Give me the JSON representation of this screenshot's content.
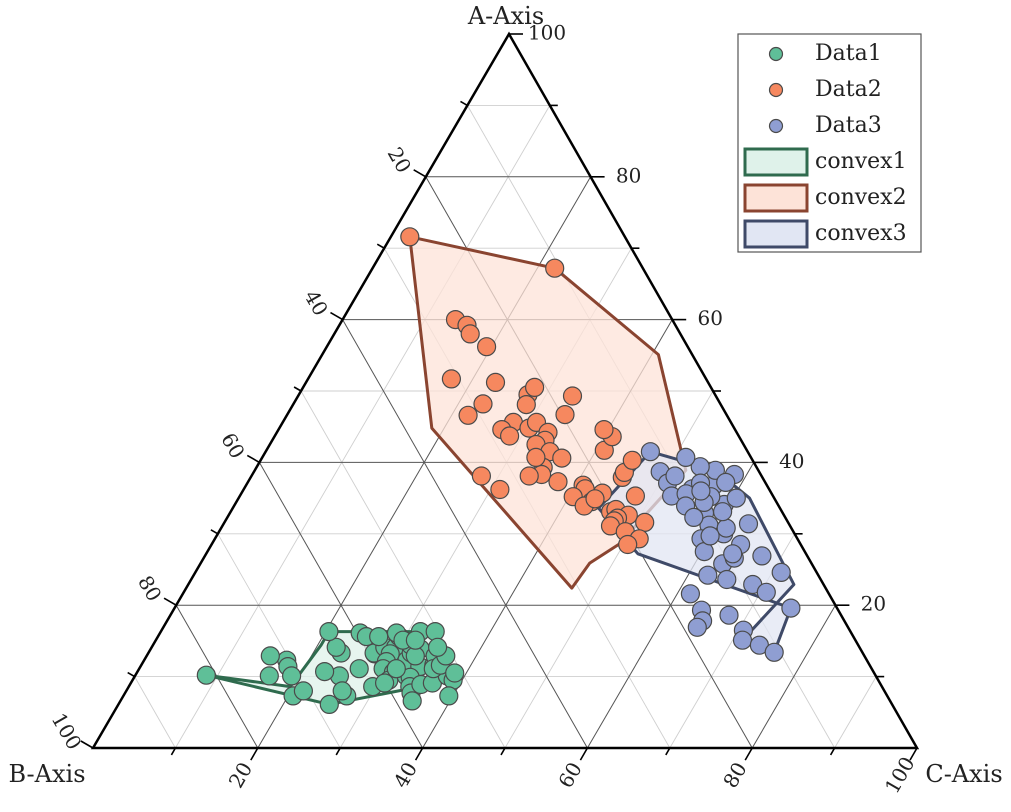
{
  "chart_data": {
    "type": "scatter",
    "subtype": "ternary",
    "axes": {
      "a": {
        "label": "A-Axis",
        "range": [
          0,
          100
        ]
      },
      "b": {
        "label": "B-Axis",
        "range": [
          0,
          100
        ]
      },
      "c": {
        "label": "C-Axis",
        "range": [
          0,
          100
        ]
      }
    },
    "ticks": {
      "a": [
        "20",
        "40",
        "60",
        "80",
        "100"
      ],
      "b": [
        "20",
        "40",
        "60",
        "80",
        "100"
      ],
      "c": [
        "20",
        "40",
        "60",
        "80",
        "100"
      ]
    },
    "grid": true,
    "legend": {
      "position": "top-right",
      "entries": [
        "Data1",
        "Data2",
        "Data3",
        "convex1",
        "convex2",
        "convex3"
      ]
    },
    "colors": {
      "Data1": "#5fbf98",
      "Data2": "#f6885f",
      "Data3": "#8f9ed2",
      "convex1_stroke": "#2f6b4e",
      "convex1_fill": "#dff2ea",
      "convex2_stroke": "#8a4430",
      "convex2_fill": "#fde3d8",
      "convex3_stroke": "#3f4a68",
      "convex3_fill": "#e1e6f3"
    },
    "series": [
      {
        "name": "Data1",
        "points": [
          [
            10.2,
            81.2,
            8.6
          ],
          [
            13.3,
            63.3,
            23.4
          ],
          [
            14.1,
            63.5,
            22.4
          ],
          [
            12.3,
            70.4,
            17.3
          ],
          [
            11.4,
            70.7,
            17.9
          ],
          [
            12.9,
            72.1,
            15.0
          ],
          [
            7.3,
            72.1,
            20.6
          ],
          [
            8.0,
            70.5,
            21.5
          ],
          [
            10.1,
            73.6,
            16.3
          ],
          [
            10.1,
            70.9,
            19.0
          ],
          [
            6.1,
            68.3,
            25.6
          ],
          [
            7.3,
            65.6,
            27.1
          ],
          [
            10.1,
            65.1,
            24.8
          ],
          [
            10.7,
            66.6,
            22.7
          ],
          [
            8.0,
            65.8,
            26.2
          ],
          [
            11.1,
            62.2,
            26.7
          ],
          [
            13.2,
            59.3,
            27.5
          ],
          [
            14.4,
            58.1,
            27.5
          ],
          [
            16.3,
            63.3,
            20.4
          ],
          [
            16.1,
            59.6,
            24.3
          ],
          [
            15.6,
            59.1,
            25.3
          ],
          [
            13.3,
            59.3,
            27.4
          ],
          [
            14.1,
            57.6,
            28.3
          ],
          [
            12.9,
            56.4,
            30.7
          ],
          [
            14.1,
            56.3,
            29.6
          ],
          [
            13.2,
            57.4,
            29.4
          ],
          [
            12.1,
            58.4,
            29.5
          ],
          [
            11.1,
            59.3,
            29.6
          ],
          [
            10.6,
            58.3,
            31.1
          ],
          [
            9.5,
            59.4,
            31.1
          ],
          [
            8.6,
            61.8,
            29.6
          ],
          [
            9.1,
            60.1,
            30.8
          ],
          [
            10.1,
            57.0,
            32.9
          ],
          [
            11.1,
            57.7,
            31.2
          ],
          [
            12.3,
            55.8,
            31.9
          ],
          [
            11.4,
            54.7,
            33.9
          ],
          [
            9.9,
            56.6,
            33.5
          ],
          [
            8.6,
            57.3,
            34.1
          ],
          [
            7.7,
            57.6,
            34.7
          ],
          [
            8.9,
            55.8,
            35.3
          ],
          [
            6.6,
            58.0,
            35.4
          ],
          [
            9.1,
            54.3,
            36.6
          ],
          [
            13.3,
            54.8,
            31.9
          ],
          [
            14.4,
            54.3,
            31.3
          ],
          [
            15.6,
            55.1,
            29.3
          ],
          [
            16.1,
            55.2,
            28.7
          ],
          [
            16.3,
            52.2,
            31.5
          ],
          [
            15.1,
            54.9,
            30.0
          ],
          [
            13.9,
            53.4,
            32.7
          ],
          [
            12.9,
            54.5,
            32.6
          ],
          [
            11.6,
            52.9,
            35.5
          ],
          [
            12.9,
            52.1,
            35.0
          ],
          [
            10.1,
            52.0,
            37.9
          ],
          [
            11.1,
            53.2,
            35.7
          ],
          [
            15.1,
            53.4,
            31.5
          ],
          [
            16.3,
            50.4,
            33.3
          ],
          [
            15.6,
            57.6,
            26.8
          ],
          [
            11.6,
            52.1,
            36.3
          ],
          [
            9.5,
            51.6,
            38.9
          ],
          [
            7.3,
            53.2,
            39.5
          ],
          [
            12.9,
            50.8,
            36.3
          ],
          [
            14.1,
            51.2,
            34.7
          ],
          [
            10.5,
            50.9,
            38.6
          ],
          [
            11.1,
            57.7,
            31.2
          ]
        ]
      },
      {
        "name": "Data2",
        "points": [
          [
            71.6,
            26.1,
            2.3
          ],
          [
            67.2,
            10.7,
            22.1
          ],
          [
            60.0,
            26.3,
            13.7
          ],
          [
            59.2,
            25.3,
            15.5
          ],
          [
            58.0,
            25.5,
            16.5
          ],
          [
            56.2,
            24.4,
            19.4
          ],
          [
            51.7,
            30.9,
            17.4
          ],
          [
            51.2,
            25.8,
            23.0
          ],
          [
            46.6,
            31.4,
            22.0
          ],
          [
            48.2,
            28.8,
            23.0
          ],
          [
            45.6,
            26.4,
            28.0
          ],
          [
            44.6,
            28.3,
            27.1
          ],
          [
            44.8,
            24.9,
            30.3
          ],
          [
            43.7,
            27.8,
            28.5
          ],
          [
            49.5,
            22.7,
            27.8
          ],
          [
            48.1,
            23.6,
            28.3
          ],
          [
            45.6,
            23.6,
            30.8
          ],
          [
            44.2,
            22.9,
            32.9
          ],
          [
            43.1,
            23.8,
            33.1
          ],
          [
            42.5,
            25.2,
            32.3
          ],
          [
            41.5,
            24.0,
            34.5
          ],
          [
            40.6,
            23.0,
            36.4
          ],
          [
            39.3,
            25.9,
            34.8
          ],
          [
            38.3,
            26.6,
            35.1
          ],
          [
            37.3,
            25.1,
            37.6
          ],
          [
            36.8,
            22.3,
            40.9
          ],
          [
            36.3,
            22.3,
            41.4
          ],
          [
            35.2,
            24.3,
            40.5
          ],
          [
            35.7,
            20.5,
            43.8
          ],
          [
            34.5,
            22.4,
            43.1
          ],
          [
            33.9,
            23.6,
            42.5
          ],
          [
            34.9,
            21.8,
            43.3
          ],
          [
            33.1,
            20.8,
            46.1
          ],
          [
            33.4,
            20.0,
            46.6
          ],
          [
            32.6,
            18.9,
            48.5
          ],
          [
            32.2,
            20.4,
            47.4
          ],
          [
            31.8,
            21.0,
            47.2
          ],
          [
            31.1,
            21.8,
            47.1
          ],
          [
            31.6,
            17.4,
            51.0
          ],
          [
            30.3,
            20.4,
            49.3
          ],
          [
            29.3,
            19.2,
            51.5
          ],
          [
            28.5,
            21.0,
            50.5
          ],
          [
            35.3,
            16.7,
            48.0
          ],
          [
            37.9,
            17.0,
            45.1
          ],
          [
            38.6,
            16.4,
            45.0
          ],
          [
            40.3,
            14.6,
            45.1
          ],
          [
            41.7,
            17.3,
            41.0
          ],
          [
            43.6,
            15.4,
            41.0
          ],
          [
            44.6,
            15.9,
            39.5
          ],
          [
            46.7,
            19.6,
            33.7
          ],
          [
            49.3,
            17.4,
            33.3
          ],
          [
            50.5,
            21.4,
            28.1
          ],
          [
            40.7,
            26.1,
            33.2
          ],
          [
            36.2,
            32.7,
            31.1
          ],
          [
            38.1,
            34.0,
            27.9
          ],
          [
            38.1,
            28.2,
            33.7
          ]
        ]
      },
      {
        "name": "Data3",
        "points": [
          [
            41.5,
            11.8,
            46.7
          ],
          [
            38.7,
            12.0,
            49.3
          ],
          [
            37.1,
            11.9,
            51.0
          ],
          [
            35.3,
            12.3,
            52.4
          ],
          [
            36.3,
            9.3,
            54.4
          ],
          [
            35.6,
            10.4,
            54.0
          ],
          [
            33.9,
            11.3,
            54.8
          ],
          [
            32.9,
            9.5,
            57.6
          ],
          [
            31.2,
            9.8,
            59.0
          ],
          [
            29.3,
            11.7,
            59.0
          ],
          [
            27.5,
            12.2,
            60.3
          ],
          [
            25.8,
            10.8,
            63.4
          ],
          [
            24.2,
            13.4,
            62.4
          ],
          [
            21.6,
            16.8,
            61.6
          ],
          [
            19.3,
            16.6,
            64.1
          ],
          [
            17.8,
            17.2,
            65.0
          ],
          [
            16.9,
            18.3,
            64.8
          ],
          [
            18.6,
            13.6,
            67.8
          ],
          [
            16.5,
            12.9,
            70.6
          ],
          [
            15.1,
            13.7,
            71.2
          ],
          [
            14.4,
            12.0,
            73.6
          ],
          [
            13.4,
            10.7,
            75.9
          ],
          [
            19.6,
            5.6,
            74.8
          ],
          [
            22.9,
            8.6,
            68.5
          ],
          [
            24.6,
            4.3,
            71.1
          ],
          [
            26.6,
            9.0,
            64.4
          ],
          [
            28.5,
            7.3,
            64.2
          ],
          [
            30.0,
            8.6,
            61.4
          ],
          [
            31.4,
            4.9,
            63.7
          ],
          [
            34.1,
            6.5,
            59.4
          ],
          [
            36.8,
            6.4,
            56.8
          ],
          [
            38.3,
            3.2,
            58.5
          ],
          [
            38.9,
            5.2,
            55.9
          ],
          [
            39.4,
            6.8,
            53.8
          ],
          [
            40.7,
            7.9,
            51.4
          ],
          [
            37.2,
            4.8,
            58.0
          ],
          [
            32.3,
            11.1,
            56.6
          ],
          [
            30.8,
            7.9,
            61.3
          ],
          [
            26.9,
            5.5,
            67.6
          ],
          [
            27.2,
            8.9,
            63.9
          ],
          [
            23.6,
            11.4,
            65.0
          ],
          [
            21.8,
            7.5,
            70.7
          ],
          [
            37.1,
            7.9,
            55.0
          ],
          [
            35.2,
            7.6,
            57.2
          ],
          [
            34.4,
            8.8,
            56.8
          ],
          [
            33.1,
            7.2,
            59.7
          ],
          [
            29.7,
            10.4,
            59.9
          ],
          [
            36.0,
            8.4,
            55.6
          ],
          [
            38.1,
            10.5,
            51.4
          ],
          [
            35.0,
            4.6,
            60.4
          ]
        ]
      }
    ],
    "hulls": [
      {
        "name": "convex1",
        "points": [
          [
            10.2,
            81.2,
            8.6
          ],
          [
            6.1,
            68.3,
            25.6
          ],
          [
            9.5,
            51.6,
            38.9
          ],
          [
            14.1,
            51.2,
            34.7
          ],
          [
            16.3,
            50.4,
            33.3
          ],
          [
            16.3,
            63.3,
            20.4
          ],
          [
            14.4,
            65.2,
            20.4
          ],
          [
            8.6,
            71.8,
            19.6
          ]
        ]
      },
      {
        "name": "convex2",
        "points": [
          [
            71.6,
            26.1,
            2.3
          ],
          [
            67.2,
            10.7,
            22.1
          ],
          [
            55.1,
            4.1,
            40.8
          ],
          [
            38.9,
            8.8,
            52.3
          ],
          [
            28.5,
            22.1,
            49.4
          ],
          [
            25.9,
            26.9,
            47.2
          ],
          [
            22.4,
            30.8,
            46.8
          ],
          [
            44.8,
            36.7,
            18.5
          ]
        ]
      },
      {
        "name": "convex3",
        "points": [
          [
            41.5,
            11.8,
            46.7
          ],
          [
            38.9,
            5.2,
            55.9
          ],
          [
            35.0,
            3.0,
            62.0
          ],
          [
            22.9,
            3.6,
            73.5
          ],
          [
            15.1,
            13.7,
            71.2
          ],
          [
            13.4,
            10.7,
            75.9
          ],
          [
            19.6,
            5.6,
            74.8
          ],
          [
            27.2,
            20.4,
            52.4
          ],
          [
            33.6,
            22.0,
            44.4
          ]
        ]
      }
    ]
  }
}
